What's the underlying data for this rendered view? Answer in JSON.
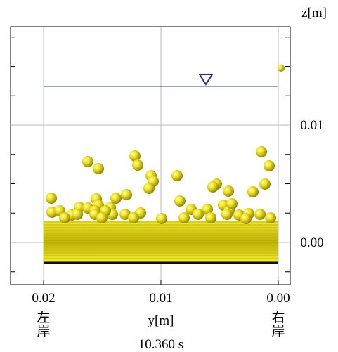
{
  "axes": {
    "z_label": "z[m]",
    "y_label": "y[m]",
    "z_ticks": [
      {
        "value": 0.01,
        "label": "0.01"
      },
      {
        "value": 0,
        "label": "0.00"
      }
    ],
    "y_ticks": [
      {
        "value": 0.02,
        "label": "0.02"
      },
      {
        "value": 0.01,
        "label": "0.01"
      },
      {
        "value": 0,
        "label": "0.00"
      }
    ]
  },
  "banks": {
    "left": [
      "左",
      "岸"
    ],
    "right": [
      "右",
      "岸"
    ]
  },
  "time": "10.360 s"
}
